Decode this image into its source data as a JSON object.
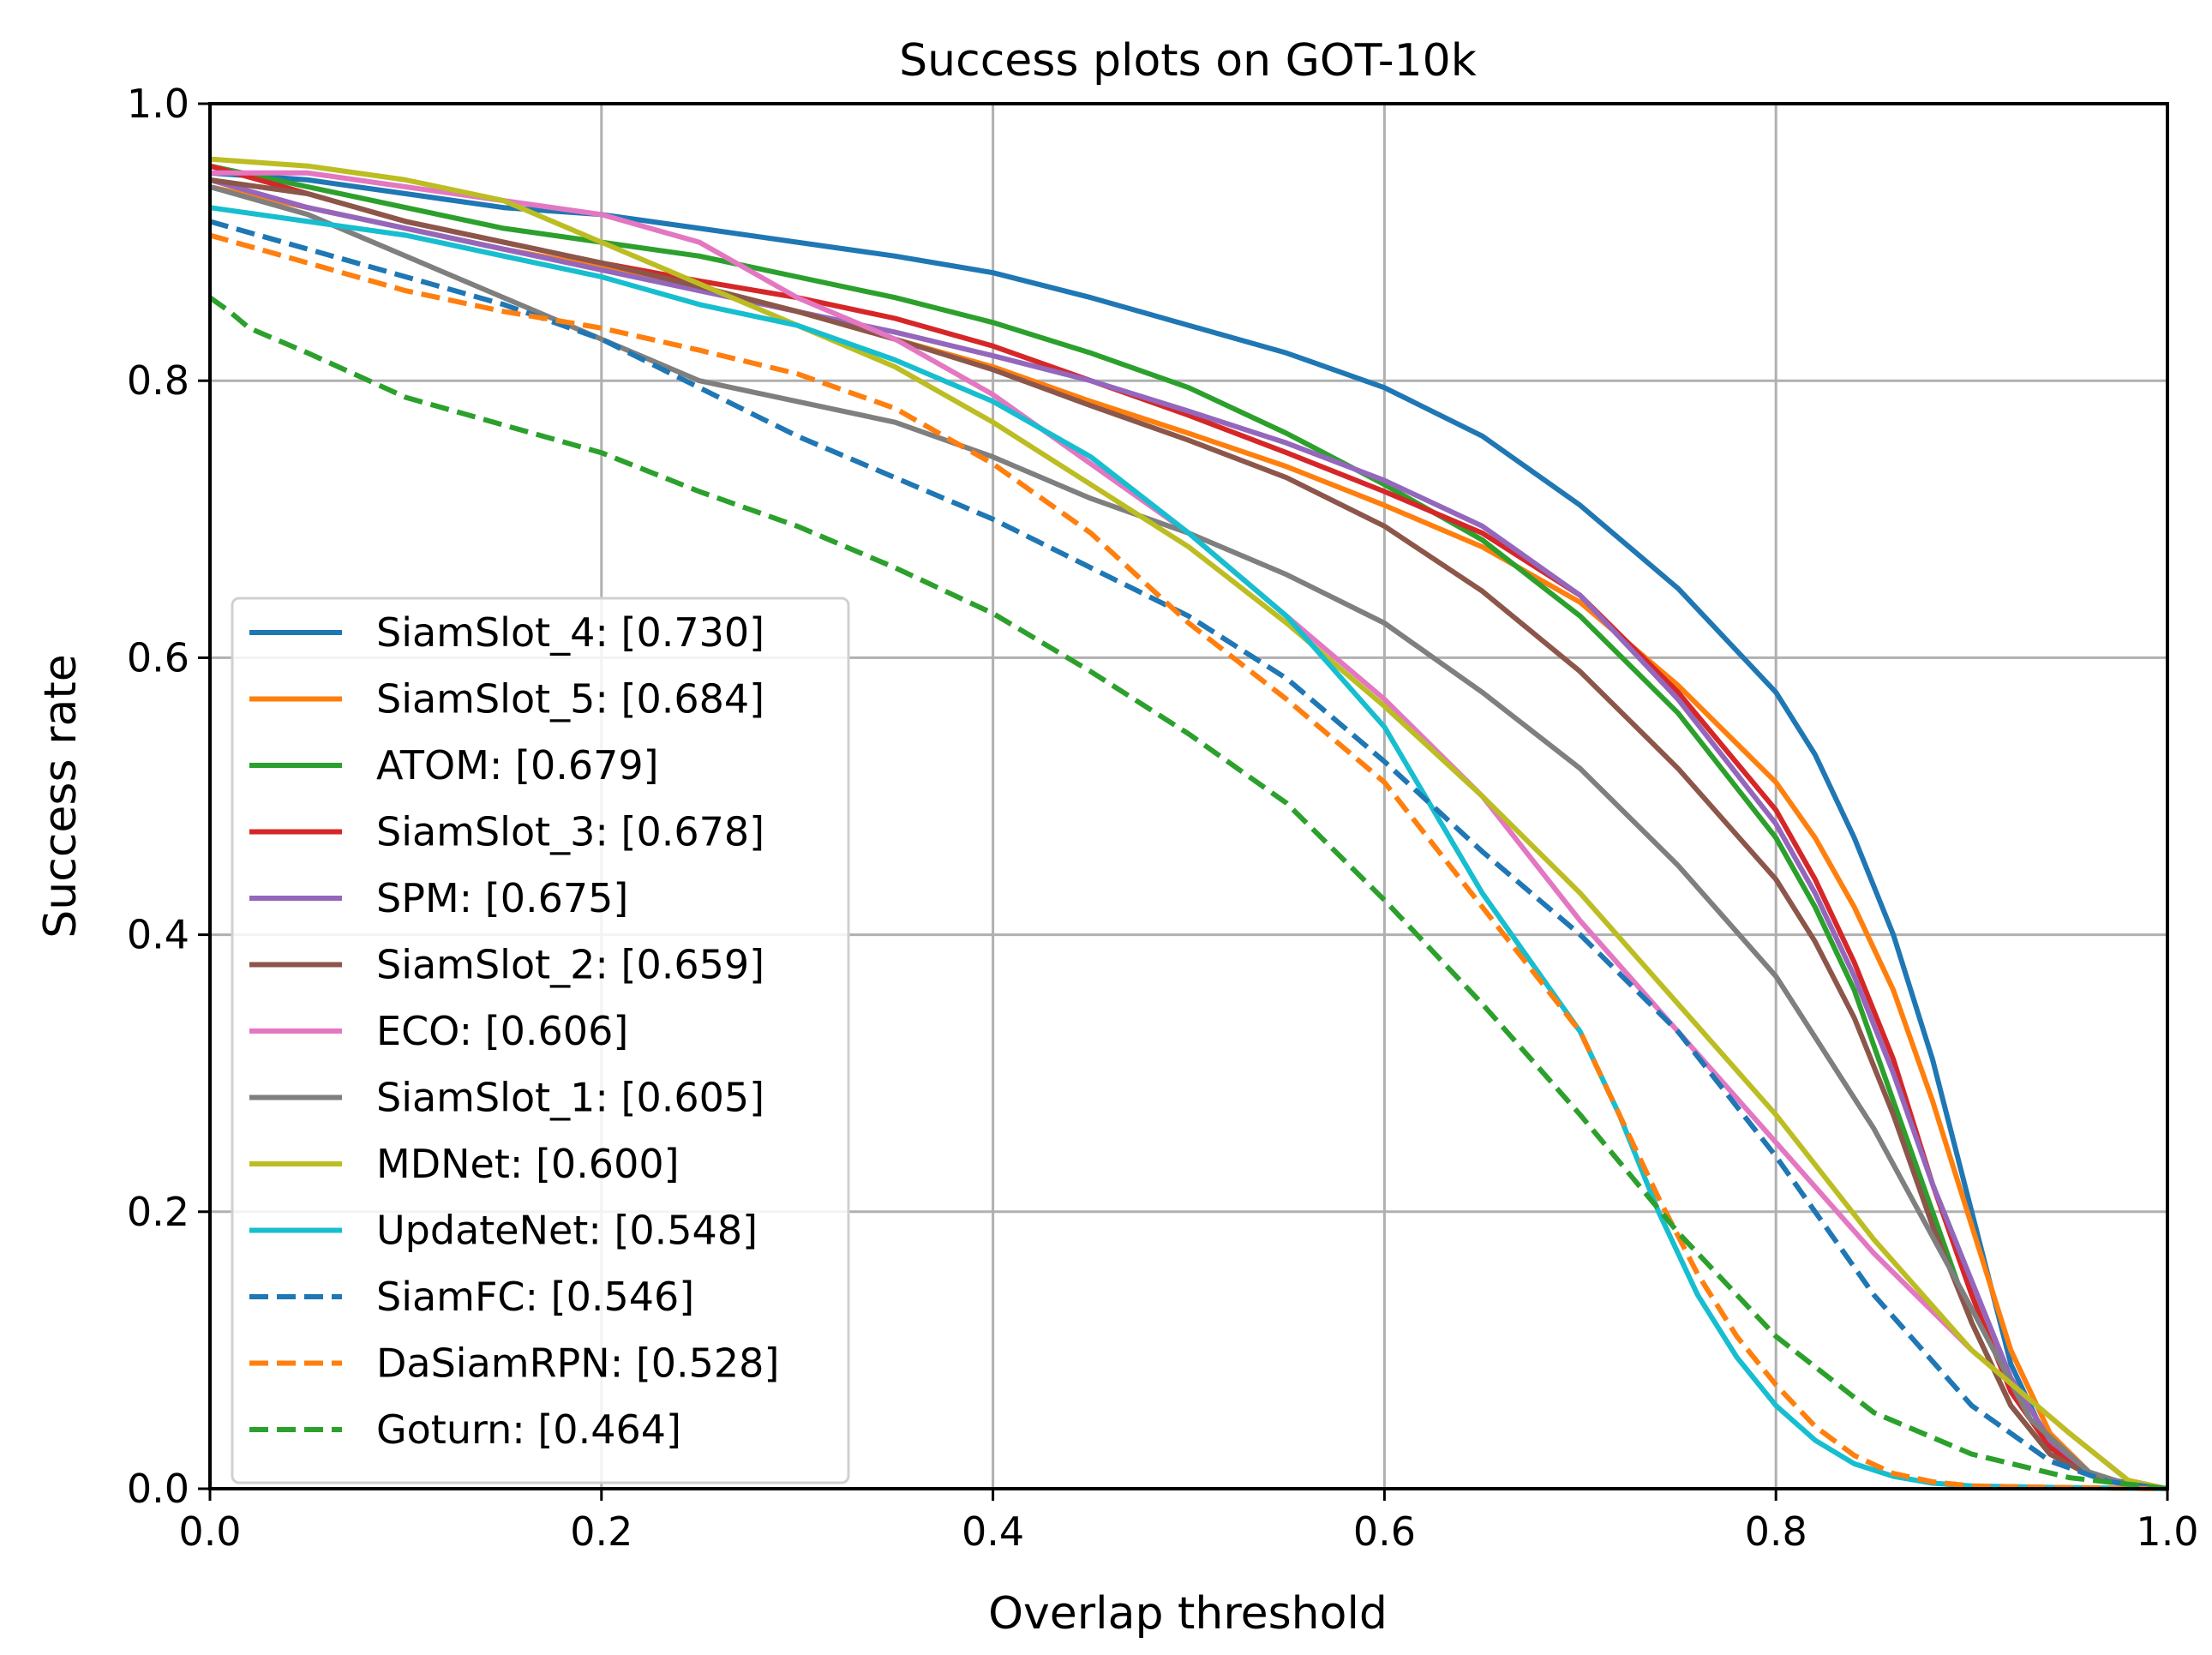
{
  "chart_data": {
    "type": "line",
    "title": "Success plots on GOT-10k",
    "xlabel": "Overlap threshold",
    "ylabel": "Success rate",
    "xlim": [
      0,
      1
    ],
    "ylim": [
      0,
      1
    ],
    "xticks": [
      "0.0",
      "0.2",
      "0.4",
      "0.6",
      "0.8",
      "1.0"
    ],
    "yticks": [
      "0.0",
      "0.2",
      "0.4",
      "0.6",
      "0.8",
      "1.0"
    ],
    "grid": true,
    "legend_position": "lower-left",
    "series": [
      {
        "name": "SiamSlot_4: [0.730]",
        "color": "#1f77b4",
        "style": "solid",
        "x": [
          0,
          0.05,
          0.1,
          0.15,
          0.2,
          0.25,
          0.3,
          0.35,
          0.4,
          0.45,
          0.5,
          0.55,
          0.6,
          0.65,
          0.7,
          0.75,
          0.8,
          0.82,
          0.84,
          0.86,
          0.88,
          0.9,
          0.92,
          0.94,
          0.96,
          0.98,
          1.0
        ],
        "y": [
          0.95,
          0.945,
          0.935,
          0.925,
          0.92,
          0.91,
          0.9,
          0.89,
          0.878,
          0.86,
          0.84,
          0.82,
          0.795,
          0.76,
          0.71,
          0.65,
          0.575,
          0.53,
          0.47,
          0.4,
          0.31,
          0.2,
          0.09,
          0.03,
          0.01,
          0.004,
          0.0
        ]
      },
      {
        "name": "SiamSlot_5: [0.684]",
        "color": "#ff7f0e",
        "style": "solid",
        "x": [
          0,
          0.05,
          0.1,
          0.15,
          0.2,
          0.25,
          0.3,
          0.35,
          0.4,
          0.45,
          0.5,
          0.55,
          0.6,
          0.65,
          0.7,
          0.75,
          0.8,
          0.82,
          0.84,
          0.86,
          0.88,
          0.9,
          0.92,
          0.94,
          0.96,
          0.98,
          1.0
        ],
        "y": [
          0.94,
          0.925,
          0.91,
          0.895,
          0.882,
          0.868,
          0.85,
          0.83,
          0.81,
          0.785,
          0.762,
          0.738,
          0.71,
          0.68,
          0.64,
          0.58,
          0.51,
          0.47,
          0.42,
          0.36,
          0.28,
          0.19,
          0.1,
          0.04,
          0.012,
          0.003,
          0.0
        ]
      },
      {
        "name": "ATOM: [0.679]",
        "color": "#2ca02c",
        "style": "solid",
        "x": [
          0,
          0.05,
          0.1,
          0.15,
          0.2,
          0.25,
          0.3,
          0.35,
          0.4,
          0.45,
          0.5,
          0.55,
          0.6,
          0.65,
          0.7,
          0.75,
          0.8,
          0.82,
          0.84,
          0.86,
          0.88,
          0.9,
          0.92,
          0.94,
          0.96,
          0.98,
          1.0
        ],
        "y": [
          0.955,
          0.94,
          0.925,
          0.91,
          0.9,
          0.89,
          0.875,
          0.86,
          0.842,
          0.82,
          0.795,
          0.762,
          0.725,
          0.685,
          0.63,
          0.56,
          0.47,
          0.42,
          0.36,
          0.28,
          0.2,
          0.12,
          0.06,
          0.025,
          0.01,
          0.003,
          0.0
        ]
      },
      {
        "name": "SiamSlot_3: [0.678]",
        "color": "#d62728",
        "style": "solid",
        "x": [
          0,
          0.05,
          0.1,
          0.15,
          0.2,
          0.25,
          0.3,
          0.35,
          0.4,
          0.45,
          0.5,
          0.55,
          0.6,
          0.65,
          0.7,
          0.75,
          0.8,
          0.82,
          0.84,
          0.86,
          0.88,
          0.9,
          0.92,
          0.94,
          0.96,
          0.98,
          1.0
        ],
        "y": [
          0.955,
          0.935,
          0.915,
          0.9,
          0.885,
          0.872,
          0.86,
          0.845,
          0.825,
          0.8,
          0.775,
          0.748,
          0.72,
          0.69,
          0.645,
          0.575,
          0.49,
          0.44,
          0.38,
          0.31,
          0.22,
          0.14,
          0.07,
          0.03,
          0.01,
          0.003,
          0.0
        ]
      },
      {
        "name": "SPM: [0.675]",
        "color": "#9467bd",
        "style": "solid",
        "x": [
          0,
          0.05,
          0.1,
          0.15,
          0.2,
          0.25,
          0.3,
          0.35,
          0.4,
          0.45,
          0.5,
          0.55,
          0.6,
          0.65,
          0.7,
          0.75,
          0.8,
          0.82,
          0.84,
          0.86,
          0.88,
          0.9,
          0.92,
          0.94,
          0.96,
          0.98,
          1.0
        ],
        "y": [
          0.945,
          0.925,
          0.91,
          0.895,
          0.88,
          0.865,
          0.85,
          0.835,
          0.818,
          0.8,
          0.778,
          0.755,
          0.728,
          0.695,
          0.645,
          0.57,
          0.48,
          0.43,
          0.37,
          0.3,
          0.22,
          0.15,
          0.08,
          0.035,
          0.012,
          0.003,
          0.0
        ]
      },
      {
        "name": "SiamSlot_2: [0.659]",
        "color": "#8c564b",
        "style": "solid",
        "x": [
          0,
          0.05,
          0.1,
          0.15,
          0.2,
          0.25,
          0.3,
          0.35,
          0.4,
          0.45,
          0.5,
          0.55,
          0.6,
          0.65,
          0.7,
          0.75,
          0.8,
          0.82,
          0.84,
          0.86,
          0.88,
          0.9,
          0.92,
          0.94,
          0.96,
          0.98,
          1.0
        ],
        "y": [
          0.945,
          0.935,
          0.915,
          0.9,
          0.885,
          0.868,
          0.85,
          0.83,
          0.808,
          0.782,
          0.757,
          0.73,
          0.695,
          0.648,
          0.59,
          0.52,
          0.44,
          0.395,
          0.34,
          0.27,
          0.19,
          0.12,
          0.06,
          0.025,
          0.01,
          0.003,
          0.0
        ]
      },
      {
        "name": "ECO: [0.606]",
        "color": "#e377c2",
        "style": "solid",
        "x": [
          0,
          0.05,
          0.1,
          0.15,
          0.2,
          0.25,
          0.3,
          0.35,
          0.4,
          0.45,
          0.5,
          0.55,
          0.6,
          0.65,
          0.7,
          0.75,
          0.8,
          0.85,
          0.9,
          0.95,
          0.98,
          1.0
        ],
        "y": [
          0.95,
          0.95,
          0.94,
          0.93,
          0.92,
          0.9,
          0.86,
          0.83,
          0.79,
          0.74,
          0.69,
          0.63,
          0.57,
          0.5,
          0.41,
          0.33,
          0.25,
          0.17,
          0.1,
          0.04,
          0.006,
          0.0
        ]
      },
      {
        "name": "SiamSlot_1: [0.605]",
        "color": "#7f7f7f",
        "style": "solid",
        "x": [
          0,
          0.05,
          0.1,
          0.15,
          0.2,
          0.25,
          0.3,
          0.35,
          0.4,
          0.45,
          0.5,
          0.55,
          0.6,
          0.65,
          0.7,
          0.75,
          0.8,
          0.85,
          0.9,
          0.93,
          0.96,
          0.98,
          1.0
        ],
        "y": [
          0.94,
          0.92,
          0.89,
          0.86,
          0.83,
          0.8,
          0.785,
          0.77,
          0.745,
          0.715,
          0.69,
          0.66,
          0.625,
          0.575,
          0.52,
          0.45,
          0.37,
          0.26,
          0.13,
          0.05,
          0.012,
          0.003,
          0.0
        ]
      },
      {
        "name": "MDNet: [0.600]",
        "color": "#bcbd22",
        "style": "solid",
        "x": [
          0,
          0.05,
          0.1,
          0.15,
          0.2,
          0.25,
          0.3,
          0.35,
          0.4,
          0.45,
          0.5,
          0.55,
          0.6,
          0.65,
          0.7,
          0.75,
          0.8,
          0.85,
          0.9,
          0.95,
          0.98,
          1.0
        ],
        "y": [
          0.96,
          0.955,
          0.945,
          0.93,
          0.9,
          0.87,
          0.84,
          0.81,
          0.77,
          0.725,
          0.68,
          0.625,
          0.565,
          0.5,
          0.43,
          0.35,
          0.27,
          0.18,
          0.1,
          0.04,
          0.006,
          0.0
        ]
      },
      {
        "name": "UpdateNet: [0.548]",
        "color": "#17becf",
        "style": "solid",
        "x": [
          0,
          0.05,
          0.1,
          0.15,
          0.2,
          0.25,
          0.3,
          0.35,
          0.4,
          0.45,
          0.5,
          0.55,
          0.6,
          0.65,
          0.7,
          0.72,
          0.74,
          0.76,
          0.78,
          0.8,
          0.82,
          0.84,
          0.86,
          0.88,
          0.9,
          0.94,
          1.0
        ],
        "y": [
          0.925,
          0.915,
          0.905,
          0.89,
          0.875,
          0.855,
          0.84,
          0.815,
          0.785,
          0.745,
          0.69,
          0.63,
          0.55,
          0.43,
          0.33,
          0.27,
          0.2,
          0.14,
          0.095,
          0.06,
          0.035,
          0.018,
          0.009,
          0.004,
          0.002,
          0.001,
          0.0
        ]
      },
      {
        "name": "SiamFC: [0.546]",
        "color": "#1f77b4",
        "style": "dashed",
        "x": [
          0,
          0.05,
          0.1,
          0.15,
          0.2,
          0.25,
          0.3,
          0.35,
          0.4,
          0.45,
          0.5,
          0.55,
          0.6,
          0.65,
          0.7,
          0.75,
          0.8,
          0.85,
          0.9,
          0.94,
          0.97,
          1.0
        ],
        "y": [
          0.915,
          0.895,
          0.875,
          0.855,
          0.83,
          0.795,
          0.76,
          0.73,
          0.7,
          0.665,
          0.63,
          0.585,
          0.525,
          0.46,
          0.4,
          0.33,
          0.24,
          0.14,
          0.06,
          0.02,
          0.005,
          0.0
        ]
      },
      {
        "name": "DaSiamRPN: [0.528]",
        "color": "#ff7f0e",
        "style": "dashed",
        "x": [
          0,
          0.05,
          0.1,
          0.15,
          0.2,
          0.25,
          0.3,
          0.35,
          0.4,
          0.45,
          0.5,
          0.55,
          0.6,
          0.65,
          0.7,
          0.72,
          0.74,
          0.76,
          0.78,
          0.8,
          0.82,
          0.84,
          0.86,
          0.88,
          0.9,
          0.94,
          1.0
        ],
        "y": [
          0.905,
          0.885,
          0.865,
          0.85,
          0.838,
          0.822,
          0.805,
          0.78,
          0.74,
          0.69,
          0.625,
          0.57,
          0.51,
          0.42,
          0.33,
          0.27,
          0.21,
          0.155,
          0.11,
          0.075,
          0.045,
          0.024,
          0.011,
          0.005,
          0.002,
          0.001,
          0.0
        ]
      },
      {
        "name": "Goturn: [0.464]",
        "color": "#2ca02c",
        "style": "dashed",
        "x": [
          0,
          0.01,
          0.02,
          0.05,
          0.1,
          0.15,
          0.2,
          0.25,
          0.3,
          0.35,
          0.4,
          0.45,
          0.5,
          0.55,
          0.6,
          0.65,
          0.7,
          0.75,
          0.8,
          0.85,
          0.9,
          0.95,
          1.0
        ],
        "y": [
          0.86,
          0.85,
          0.838,
          0.82,
          0.788,
          0.768,
          0.748,
          0.72,
          0.695,
          0.665,
          0.632,
          0.59,
          0.545,
          0.495,
          0.425,
          0.35,
          0.27,
          0.185,
          0.11,
          0.055,
          0.025,
          0.008,
          0.0
        ]
      }
    ]
  }
}
